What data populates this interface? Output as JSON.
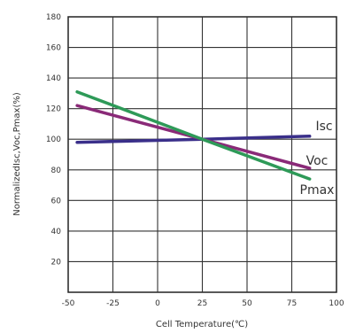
{
  "chart_data": {
    "type": "line",
    "xlabel": "Cell Temperature(℃)",
    "ylabel": "NormalizedIsc,Voc,Pmax(%)",
    "xlim": [
      -50,
      100
    ],
    "ylim": [
      0,
      180
    ],
    "xticks": [
      "-50",
      "-25",
      "0",
      "25",
      "50",
      "75",
      "100"
    ],
    "yticks": [
      "20",
      "40",
      "60",
      "80",
      "100",
      "120",
      "140",
      "160",
      "180"
    ],
    "grid": true,
    "series": [
      {
        "name": "Isc",
        "color": "#3a2f8a",
        "x": [
          -45,
          25,
          85
        ],
        "y": [
          98,
          100,
          102
        ]
      },
      {
        "name": "Voc",
        "color": "#8a2a78",
        "x": [
          -45,
          25,
          85
        ],
        "y": [
          122,
          100,
          81
        ]
      },
      {
        "name": "Pmax",
        "color": "#2e9a58",
        "x": [
          -45,
          25,
          85
        ],
        "y": [
          131,
          100,
          74
        ]
      }
    ]
  }
}
